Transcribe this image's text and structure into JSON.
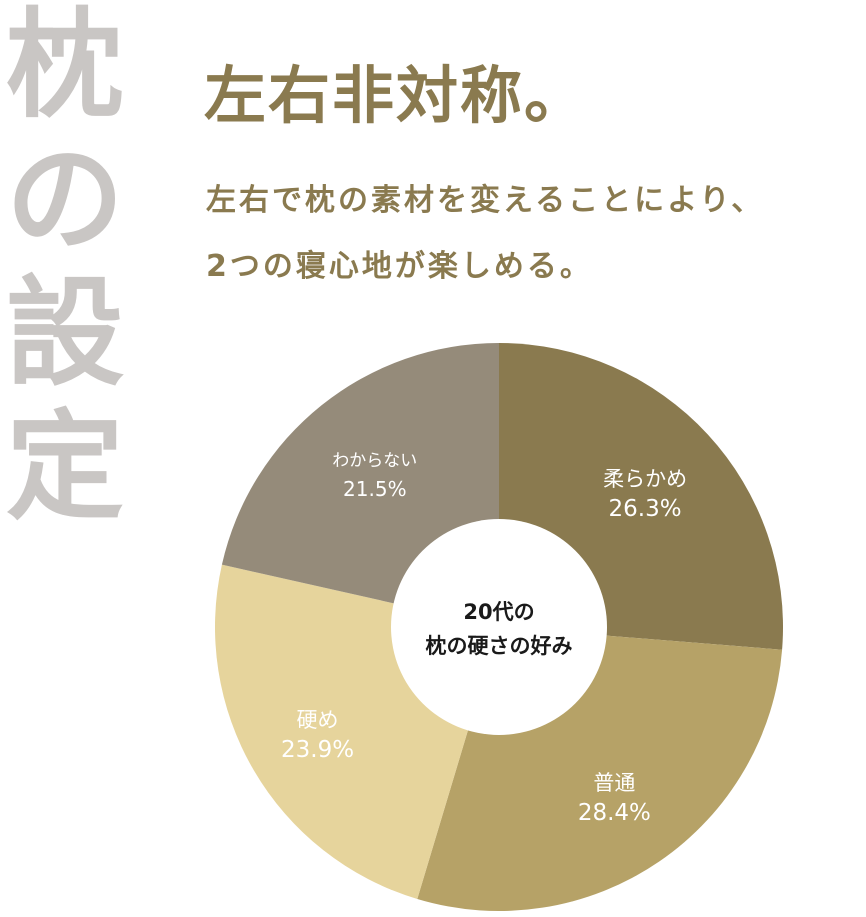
{
  "side_title": [
    "枕",
    "の",
    "設",
    "定"
  ],
  "headline": "左右非対称。",
  "subtext": {
    "line1": "左右で枕の素材を変えることにより、",
    "line2": "2つの寝心地が楽しめる。"
  },
  "chart_data": {
    "type": "pie",
    "title": "20代の枕の硬さの好み",
    "center_lines": [
      "20代の",
      "枕の硬さの好み"
    ],
    "categories": [
      "柔らかめ",
      "普通",
      "硬め",
      "わからない"
    ],
    "values": [
      26.3,
      28.4,
      23.9,
      21.5
    ],
    "value_labels": [
      "26.3%",
      "28.4%",
      "23.9%",
      "21.5%"
    ],
    "unit": "%",
    "donut": true,
    "start": "12 o'clock, clockwise",
    "colors": [
      "#8a7a4f",
      "#b6a267",
      "#e6d49c",
      "#958b7a"
    ],
    "legend": "none (labels on slices)"
  },
  "colors": {
    "side_title": "#c9c6c4",
    "accent_text": "#8a7a4f",
    "center_text": "#1a1a1a"
  }
}
